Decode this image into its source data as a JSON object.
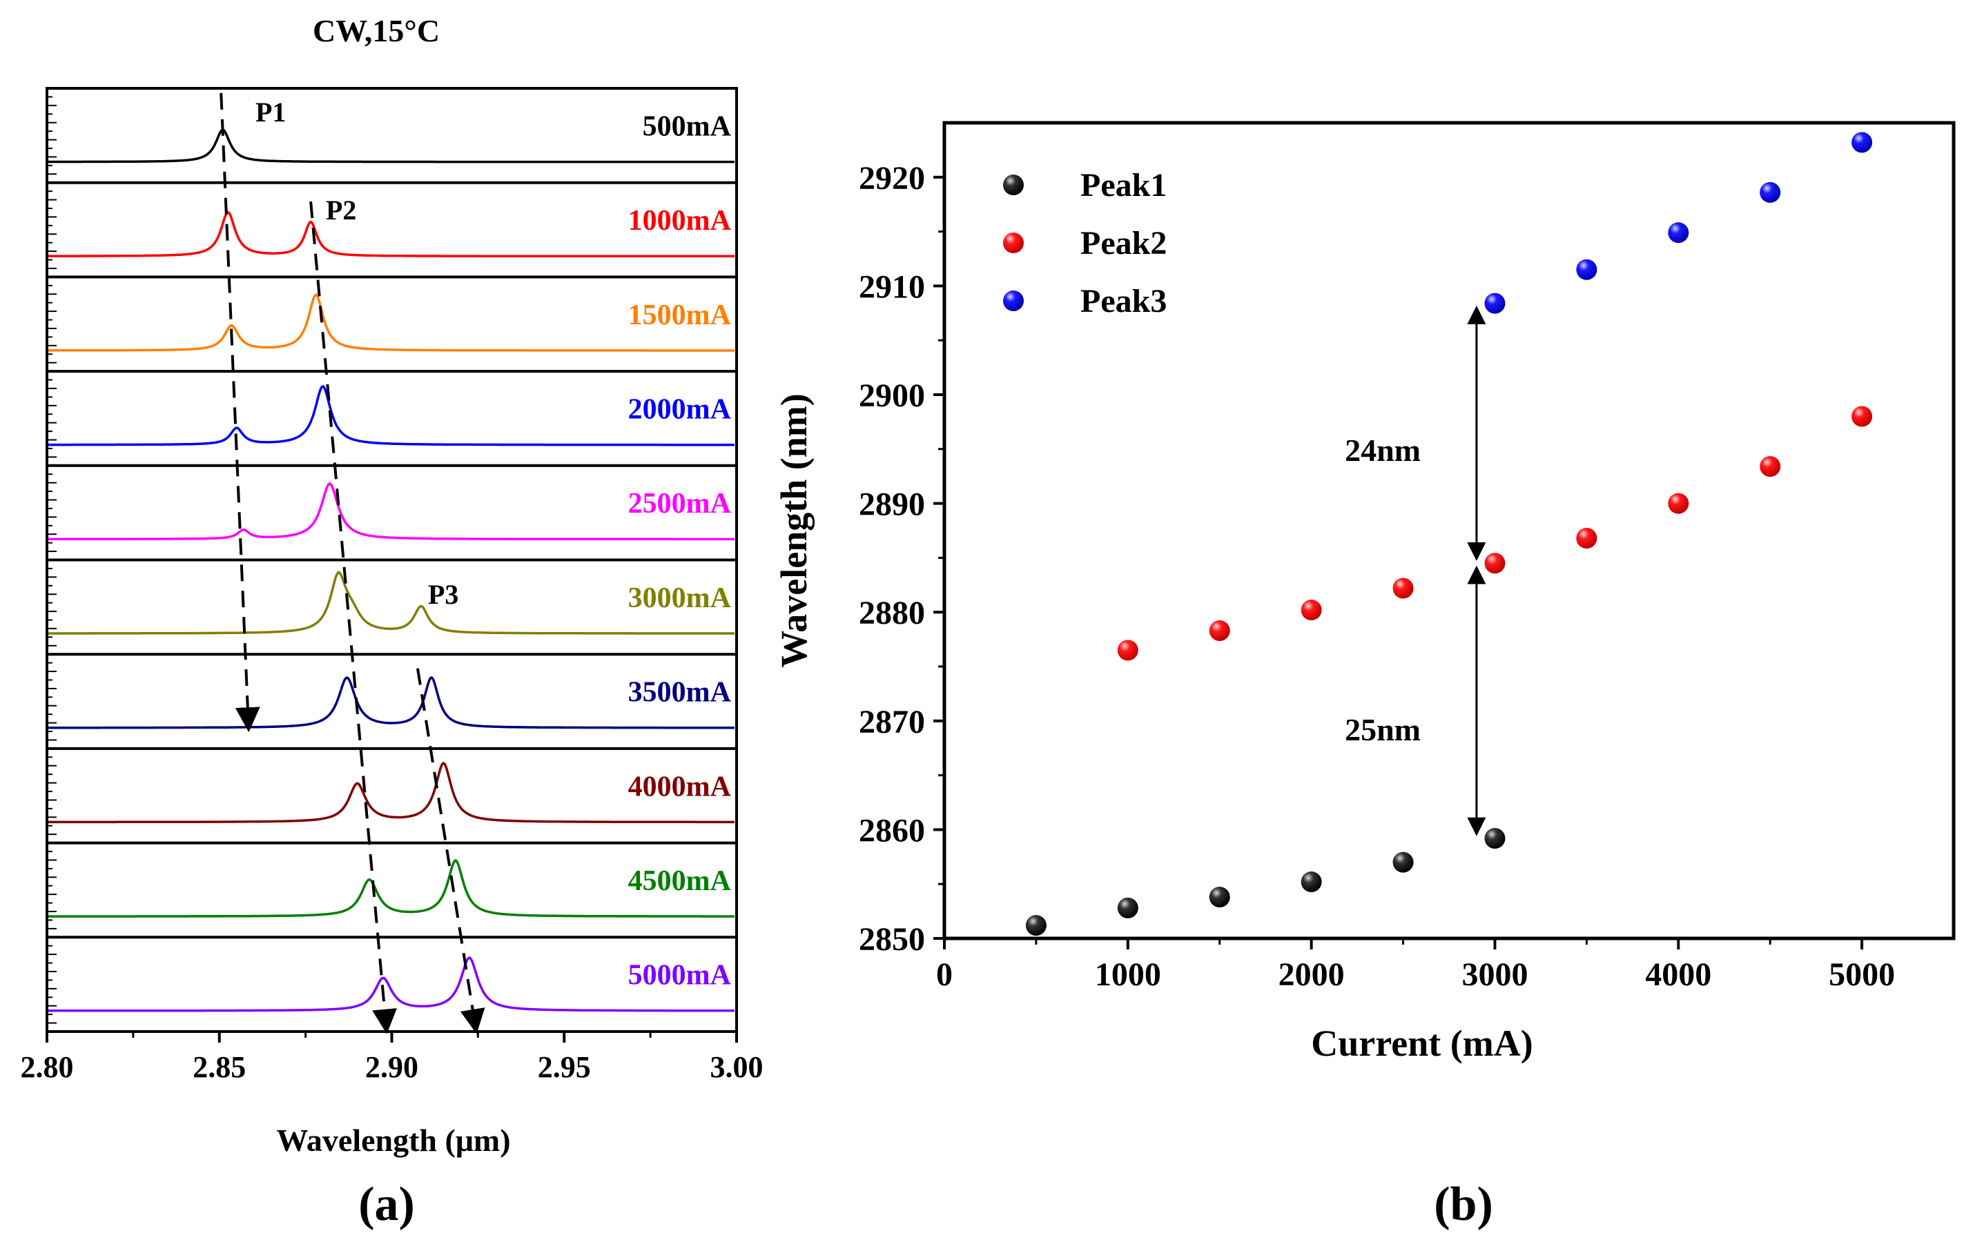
{
  "chart_data": [
    {
      "panel": "(a)",
      "type": "line",
      "title": "CW,15°C",
      "xlabel": "Wavelength (μm)",
      "ylabel": "",
      "xlim": [
        2.8,
        3.0
      ],
      "xticks": [
        2.8,
        2.85,
        2.9,
        2.95,
        3.0
      ],
      "xtick_labels": [
        "2.80",
        "2.85",
        "2.90",
        "2.95",
        "3.00"
      ],
      "grid": false,
      "series": [
        {
          "name": "500mA",
          "color": "#000000",
          "peaks": [
            {
              "center": 2.851,
              "amp": 0.55,
              "width": 0.0025
            }
          ]
        },
        {
          "name": "1000mA",
          "color": "#ff0000",
          "peaks": [
            {
              "center": 2.8525,
              "amp": 0.75,
              "width": 0.0025
            },
            {
              "center": 2.8765,
              "amp": 0.58,
              "width": 0.0022
            }
          ]
        },
        {
          "name": "1500mA",
          "color": "#ff8000",
          "peaks": [
            {
              "center": 2.8535,
              "amp": 0.42,
              "width": 0.0025
            },
            {
              "center": 2.878,
              "amp": 0.95,
              "width": 0.0026
            }
          ]
        },
        {
          "name": "2000mA",
          "color": "#0000ff",
          "peaks": [
            {
              "center": 2.855,
              "amp": 0.28,
              "width": 0.0022
            },
            {
              "center": 2.88,
              "amp": 1.0,
              "width": 0.0028
            }
          ]
        },
        {
          "name": "2500mA",
          "color": "#ff00ff",
          "peaks": [
            {
              "center": 2.857,
              "amp": 0.15,
              "width": 0.002
            },
            {
              "center": 2.882,
              "amp": 0.95,
              "width": 0.003
            }
          ]
        },
        {
          "name": "3000mA",
          "color": "#808000",
          "peaks": [
            {
              "center": 2.8845,
              "amp": 0.95,
              "width": 0.0028
            },
            {
              "center": 2.8885,
              "amp": 0.25,
              "width": 0.003
            },
            {
              "center": 2.9085,
              "amp": 0.45,
              "width": 0.0025
            }
          ]
        },
        {
          "name": "3500mA",
          "color": "#000080",
          "peaks": [
            {
              "center": 2.887,
              "amp": 0.85,
              "width": 0.003
            },
            {
              "center": 2.9115,
              "amp": 0.85,
              "width": 0.0025
            }
          ]
        },
        {
          "name": "4000mA",
          "color": "#800000",
          "peaks": [
            {
              "center": 2.89,
              "amp": 0.65,
              "width": 0.003
            },
            {
              "center": 2.915,
              "amp": 1.0,
              "width": 0.0028
            }
          ]
        },
        {
          "name": "4500mA",
          "color": "#008000",
          "peaks": [
            {
              "center": 2.8935,
              "amp": 0.62,
              "width": 0.003
            },
            {
              "center": 2.9185,
              "amp": 0.95,
              "width": 0.0028
            }
          ]
        },
        {
          "name": "5000mA",
          "color": "#8000ff",
          "peaks": [
            {
              "center": 2.8975,
              "amp": 0.55,
              "width": 0.003
            },
            {
              "center": 2.9225,
              "amp": 0.9,
              "width": 0.003
            }
          ]
        }
      ],
      "annotations": [
        "P1",
        "P2",
        "P3"
      ],
      "panel_label": "(a)"
    },
    {
      "panel": "(b)",
      "type": "scatter",
      "xlabel": "Current (mA)",
      "ylabel": "Wavelength (nm)",
      "xlim": [
        0,
        5500
      ],
      "ylim": [
        2850,
        2925
      ],
      "xticks": [
        0,
        1000,
        2000,
        3000,
        4000,
        5000
      ],
      "yticks": [
        2850,
        2860,
        2870,
        2880,
        2890,
        2900,
        2910,
        2920
      ],
      "grid": false,
      "legend_position": "top-left",
      "series": [
        {
          "name": "Peak1",
          "color": "#000000",
          "x": [
            500,
            1000,
            1500,
            2000,
            2500,
            3000
          ],
          "y": [
            2851.2,
            2852.8,
            2853.8,
            2855.2,
            2857.0,
            2859.2
          ]
        },
        {
          "name": "Peak2",
          "color": "#ff0000",
          "x": [
            1000,
            1500,
            2000,
            2500,
            3000,
            3500,
            4000,
            4500,
            5000
          ],
          "y": [
            2876.5,
            2878.3,
            2880.2,
            2882.2,
            2884.5,
            2886.8,
            2890.0,
            2893.4,
            2898.0
          ]
        },
        {
          "name": "Peak3",
          "color": "#0000ff",
          "x": [
            3000,
            3500,
            4000,
            4500,
            5000
          ],
          "y": [
            2908.4,
            2911.5,
            2914.9,
            2918.6,
            2923.2
          ]
        }
      ],
      "annotations": [
        {
          "text": "24nm",
          "from": 2884.5,
          "to": 2908.4,
          "at_x": 2900
        },
        {
          "text": "25nm",
          "from": 2859.2,
          "to": 2884.5,
          "at_x": 2900
        }
      ],
      "panel_label": "(b)"
    }
  ]
}
